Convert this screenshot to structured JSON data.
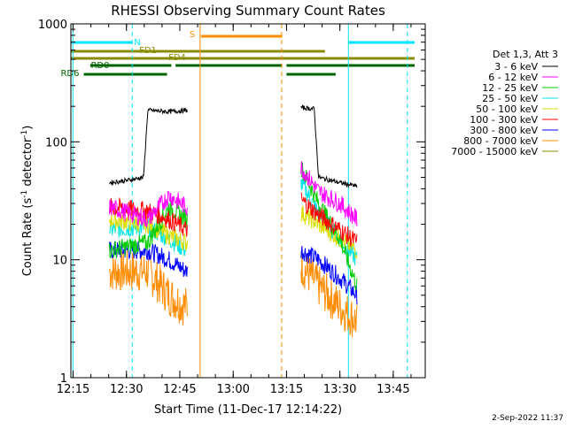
{
  "chart_data": {
    "type": "line",
    "title": "RHESSI Observing Summary Count Rates",
    "xlabel": "Start Time (11-Dec-17 12:14:22)",
    "ylabel": "Count Rate (s",
    "ylabel_sup1": "-1",
    "ylabel_mid": " detector",
    "ylabel_sup2": "-1",
    "ylabel_end": ")",
    "yscale": "log",
    "ylim": [
      1,
      1000
    ],
    "xlim": [
      "12:14:22",
      "13:54:00"
    ],
    "x_ticks": [
      "12:15",
      "12:30",
      "12:45",
      "13:00",
      "13:15",
      "13:30",
      "13:45"
    ],
    "y_ticks": [
      "1",
      "10",
      "100",
      "1000"
    ],
    "legend_title": "Det 1,3, Att 3",
    "legend_position": "right",
    "footer": "2-Sep-2022 11:37",
    "series": [
      {
        "name": "3 - 6 keV",
        "color": "#000000",
        "values": [
          [
            12.42,
            45
          ],
          [
            12.5,
            47
          ],
          [
            12.58,
            50
          ],
          [
            12.6,
            185
          ],
          [
            12.7,
            180
          ],
          [
            12.78,
            185
          ],
          [
            13.32,
            195
          ],
          [
            13.38,
            190
          ],
          [
            13.4,
            50
          ],
          [
            13.5,
            45
          ],
          [
            13.58,
            42
          ]
        ]
      },
      {
        "name": "6 - 12 keV",
        "color": "#ff00ff",
        "values": [
          [
            12.42,
            28
          ],
          [
            12.6,
            22
          ],
          [
            12.7,
            35
          ],
          [
            12.78,
            28
          ],
          [
            13.32,
            60
          ],
          [
            13.4,
            38
          ],
          [
            13.5,
            30
          ],
          [
            13.58,
            22
          ]
        ]
      },
      {
        "name": "12 - 25 keV",
        "color": "#00cc00",
        "values": [
          [
            12.42,
            12
          ],
          [
            12.6,
            14
          ],
          [
            12.7,
            28
          ],
          [
            12.78,
            22
          ],
          [
            13.32,
            60
          ],
          [
            13.4,
            30
          ],
          [
            13.5,
            15
          ],
          [
            13.58,
            6
          ]
        ]
      },
      {
        "name": "25 - 50 keV",
        "color": "#00e5e5",
        "values": [
          [
            12.42,
            18
          ],
          [
            12.6,
            19
          ],
          [
            12.7,
            15
          ],
          [
            12.78,
            12
          ],
          [
            13.32,
            45
          ],
          [
            13.4,
            25
          ],
          [
            13.5,
            15
          ],
          [
            13.58,
            10
          ]
        ]
      },
      {
        "name": "50 - 100 keV",
        "color": "#dddd00",
        "values": [
          [
            12.42,
            22
          ],
          [
            12.6,
            20
          ],
          [
            12.7,
            16
          ],
          [
            12.78,
            14
          ],
          [
            13.32,
            25
          ],
          [
            13.4,
            20
          ],
          [
            13.5,
            15
          ],
          [
            13.58,
            12
          ]
        ]
      },
      {
        "name": "100 - 300 keV",
        "color": "#ff0000",
        "values": [
          [
            12.42,
            28
          ],
          [
            12.6,
            26
          ],
          [
            12.7,
            22
          ],
          [
            12.78,
            18
          ],
          [
            13.32,
            32
          ],
          [
            13.4,
            24
          ],
          [
            13.5,
            18
          ],
          [
            13.58,
            14
          ]
        ]
      },
      {
        "name": "300 - 800 keV",
        "color": "#0000ff",
        "values": [
          [
            12.42,
            12
          ],
          [
            12.6,
            12
          ],
          [
            12.7,
            10
          ],
          [
            12.78,
            8
          ],
          [
            13.32,
            12
          ],
          [
            13.4,
            10
          ],
          [
            13.5,
            7
          ],
          [
            13.58,
            5
          ]
        ]
      },
      {
        "name": "800 - 7000 keV",
        "color": "#ff8c00",
        "values": [
          [
            12.42,
            8
          ],
          [
            12.6,
            8
          ],
          [
            12.7,
            5
          ],
          [
            12.78,
            4
          ],
          [
            13.32,
            9
          ],
          [
            13.4,
            6
          ],
          [
            13.5,
            4
          ],
          [
            13.58,
            3
          ]
        ]
      },
      {
        "name": "7000 - 15000 keV",
        "color": "#8b8b00",
        "values": []
      }
    ],
    "flags": [
      {
        "label": "N",
        "color": "#00e5ff",
        "segments": [
          [
            12.24,
            12.525
          ],
          [
            13.54,
            13.85
          ]
        ]
      },
      {
        "label": "S",
        "color": "#ff8c00",
        "segments": [
          [
            12.85,
            13.23
          ]
        ]
      },
      {
        "label": "FD1",
        "color": "#8b8b00",
        "segments": [
          [
            12.24,
            13.43
          ]
        ]
      },
      {
        "label": "FD4",
        "color": "#8b8b00",
        "segments": [
          [
            12.24,
            13.85
          ]
        ]
      },
      {
        "label": "RD0",
        "color": "#006400",
        "segments": [
          [
            12.33,
            12.71
          ],
          [
            12.73,
            13.23
          ],
          [
            13.25,
            13.85
          ]
        ]
      },
      {
        "label": "RD6",
        "color": "#006400",
        "segments": [
          [
            12.3,
            12.69
          ],
          [
            13.25,
            13.48
          ]
        ]
      }
    ],
    "markers": [
      {
        "x": 12.249,
        "color": "#00e5ff",
        "style": "solid"
      },
      {
        "x": 12.527,
        "color": "#00e5ff",
        "style": "dashed"
      },
      {
        "x": 12.845,
        "color": "#ff8c00",
        "style": "solid"
      },
      {
        "x": 13.227,
        "color": "#ff8c00",
        "style": "dashed"
      },
      {
        "x": 13.54,
        "color": "#00e5ff",
        "style": "solid"
      },
      {
        "x": 13.816,
        "color": "#00e5ff",
        "style": "dashed"
      }
    ]
  }
}
